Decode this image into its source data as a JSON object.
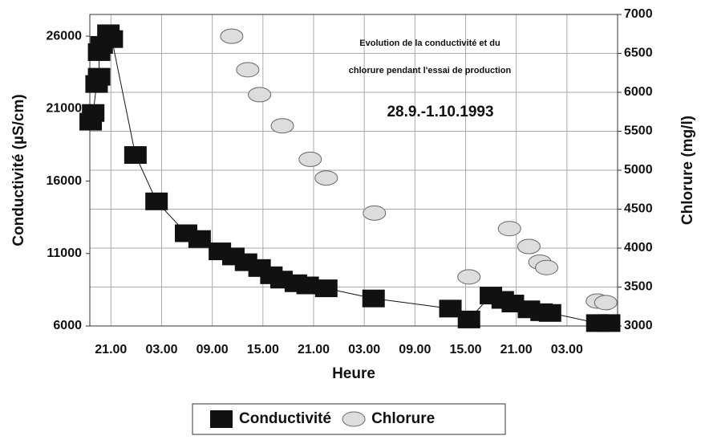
{
  "chart_data": {
    "type": "scatter",
    "title_lines": [
      "Evolution de la conductivité et du",
      "chlorure pendant l'essai de production"
    ],
    "subtitle": "28.9.-1.10.1993",
    "xlabel": "Heure",
    "ylabel": "Conductivité (µS/cm)",
    "y2label": "Chlorure (mg/l)",
    "xlim": [
      -2.5,
      60
    ],
    "xticks": [
      {
        "value": 0,
        "label": "21.00"
      },
      {
        "value": 6,
        "label": "03.00"
      },
      {
        "value": 12,
        "label": "09.00"
      },
      {
        "value": 18,
        "label": "15.00"
      },
      {
        "value": 24,
        "label": "21.00"
      },
      {
        "value": 30,
        "label": "03.00"
      },
      {
        "value": 36,
        "label": "09.00"
      },
      {
        "value": 42,
        "label": "15.00"
      },
      {
        "value": 48,
        "label": "21.00"
      },
      {
        "value": 54,
        "label": "03.00"
      }
    ],
    "ylim": [
      6000,
      27500
    ],
    "yticks": [
      6000,
      11000,
      16000,
      21000,
      26000
    ],
    "y2lim": [
      3000,
      7000
    ],
    "y2ticks": [
      3000,
      3500,
      4000,
      4500,
      5000,
      5500,
      6000,
      6500,
      7000
    ],
    "grid": true,
    "series": [
      {
        "name": "Conductivité",
        "color": "#111111",
        "marker": "square",
        "line": true,
        "x": [
          -2.4,
          -2.1,
          -1.7,
          -1.4,
          -1.4,
          -1.1,
          -0.3,
          0.1,
          2.9,
          5.4,
          8.9,
          10.5,
          12.9,
          14.5,
          16.0,
          17.6,
          19.0,
          20.2,
          21.9,
          23.3,
          25.5,
          31.1,
          40.2,
          42.4,
          45.0,
          46.4,
          47.6,
          49.5,
          51.0,
          52.0,
          57.6,
          59.0
        ],
        "values": [
          20100,
          20700,
          22700,
          23200,
          24900,
          25400,
          26200,
          25800,
          17800,
          14600,
          12400,
          12000,
          11150,
          10800,
          10400,
          10000,
          9500,
          9200,
          8950,
          8800,
          8600,
          7900,
          7200,
          6450,
          8100,
          7800,
          7550,
          7150,
          6950,
          6900,
          6200,
          6200
        ]
      },
      {
        "name": "Chlorure",
        "color": "#dddddd",
        "marker": "ellipse",
        "line": false,
        "axis": "y2",
        "x": [
          14.3,
          16.2,
          17.6,
          20.3,
          23.6,
          25.5,
          31.2,
          42.4,
          47.2,
          49.5,
          50.8,
          51.6,
          57.6,
          58.6
        ],
        "values": [
          6720,
          6290,
          5970,
          5570,
          5140,
          4900,
          4450,
          3630,
          4250,
          4020,
          3820,
          3750,
          3320,
          3300
        ]
      }
    ]
  }
}
